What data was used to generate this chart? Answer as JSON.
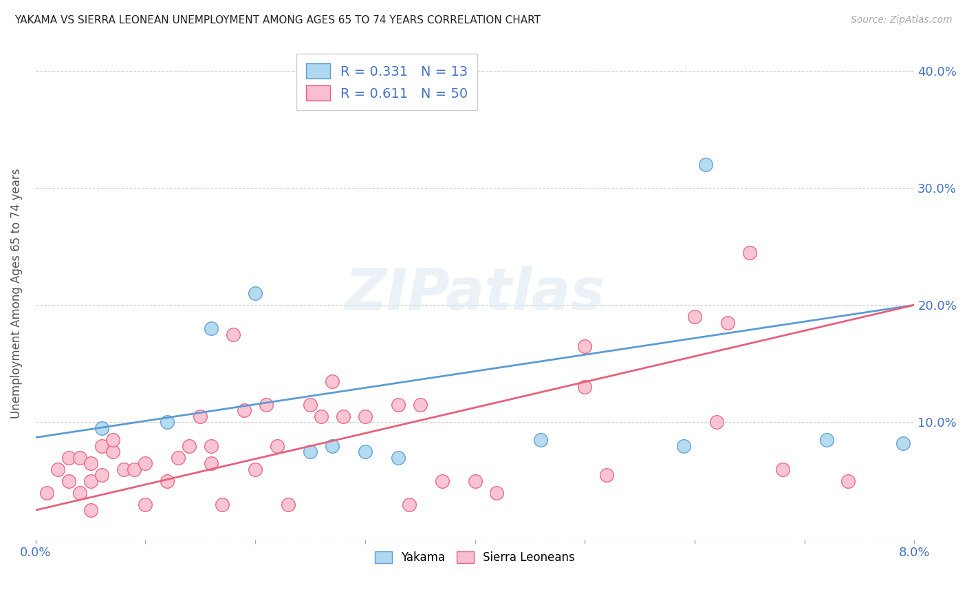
{
  "title": "YAKAMA VS SIERRA LEONEAN UNEMPLOYMENT AMONG AGES 65 TO 74 YEARS CORRELATION CHART",
  "source": "Source: ZipAtlas.com",
  "ylabel": "Unemployment Among Ages 65 to 74 years",
  "xlim": [
    0.0,
    0.08
  ],
  "ylim": [
    0.0,
    0.42
  ],
  "x_ticks": [
    0.0,
    0.01,
    0.02,
    0.03,
    0.04,
    0.05,
    0.06,
    0.07,
    0.08
  ],
  "x_tick_labels": [
    "0.0%",
    "",
    "",
    "",
    "",
    "",
    "",
    "",
    "8.0%"
  ],
  "y_ticks": [
    0.0,
    0.1,
    0.2,
    0.3,
    0.4
  ],
  "y_tick_labels": [
    "",
    "10.0%",
    "20.0%",
    "30.0%",
    "40.0%"
  ],
  "yakama_R": 0.331,
  "yakama_N": 13,
  "sierra_R": 0.611,
  "sierra_N": 50,
  "yakama_color": "#add8f0",
  "sierra_color": "#f9bfd0",
  "line_yakama_color": "#5b9bd5",
  "line_sierra_color": "#e8607a",
  "watermark": "ZIPatlas",
  "yakama_x": [
    0.006,
    0.012,
    0.016,
    0.02,
    0.025,
    0.027,
    0.03,
    0.033,
    0.046,
    0.059,
    0.061,
    0.072,
    0.079
  ],
  "yakama_y": [
    0.095,
    0.1,
    0.18,
    0.21,
    0.075,
    0.08,
    0.075,
    0.07,
    0.085,
    0.08,
    0.32,
    0.085,
    0.082
  ],
  "sierra_x": [
    0.001,
    0.002,
    0.003,
    0.003,
    0.004,
    0.004,
    0.005,
    0.005,
    0.005,
    0.006,
    0.006,
    0.007,
    0.007,
    0.008,
    0.009,
    0.01,
    0.01,
    0.012,
    0.013,
    0.014,
    0.015,
    0.016,
    0.016,
    0.017,
    0.018,
    0.019,
    0.02,
    0.021,
    0.022,
    0.023,
    0.025,
    0.026,
    0.027,
    0.028,
    0.03,
    0.033,
    0.034,
    0.035,
    0.037,
    0.04,
    0.042,
    0.05,
    0.052,
    0.06,
    0.062,
    0.063,
    0.065,
    0.068,
    0.074,
    0.05
  ],
  "sierra_y": [
    0.04,
    0.06,
    0.05,
    0.07,
    0.04,
    0.07,
    0.025,
    0.05,
    0.065,
    0.055,
    0.08,
    0.075,
    0.085,
    0.06,
    0.06,
    0.065,
    0.03,
    0.05,
    0.07,
    0.08,
    0.105,
    0.065,
    0.08,
    0.03,
    0.175,
    0.11,
    0.06,
    0.115,
    0.08,
    0.03,
    0.115,
    0.105,
    0.135,
    0.105,
    0.105,
    0.115,
    0.03,
    0.115,
    0.05,
    0.05,
    0.04,
    0.13,
    0.055,
    0.19,
    0.1,
    0.185,
    0.245,
    0.06,
    0.05,
    0.165
  ],
  "line_yakama_x0": 0.0,
  "line_yakama_y0": 0.087,
  "line_yakama_x1": 0.08,
  "line_yakama_y1": 0.2,
  "line_sierra_x0": 0.0,
  "line_sierra_y0": 0.025,
  "line_sierra_x1": 0.08,
  "line_sierra_y1": 0.2
}
